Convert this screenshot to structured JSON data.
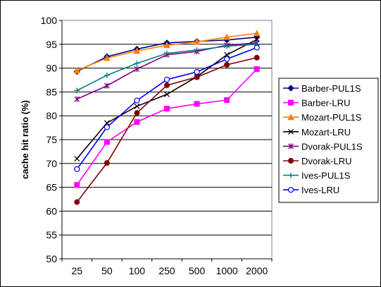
{
  "chart_data": {
    "type": "line",
    "title": "",
    "xlabel": "",
    "ylabel": "cache hit ratio (%)",
    "categories": [
      "25",
      "50",
      "100",
      "250",
      "500",
      "1000",
      "2000"
    ],
    "ylim": [
      50,
      100
    ],
    "yticks": [
      50,
      55,
      60,
      65,
      70,
      75,
      80,
      85,
      90,
      95,
      100
    ],
    "grid": "horizontal",
    "legend_position": "right",
    "series": [
      {
        "name": "Barber-PUL1S",
        "color": "#000080",
        "marker": "diamond",
        "values": [
          89.3,
          92.4,
          94.0,
          95.3,
          95.6,
          95.9,
          96.5
        ]
      },
      {
        "name": "Barber-LRU",
        "color": "#ff00ff",
        "marker": "square",
        "values": [
          65.5,
          74.5,
          78.7,
          81.5,
          82.5,
          83.3,
          89.8
        ]
      },
      {
        "name": "Mozart-PUL1S",
        "color": "#ff8000",
        "marker": "triangle",
        "values": [
          89.5,
          92.1,
          93.6,
          94.8,
          95.5,
          96.5,
          97.3
        ]
      },
      {
        "name": "Mozart-LRU",
        "color": "#000000",
        "marker": "x",
        "values": [
          71.0,
          78.5,
          82.0,
          84.5,
          88.2,
          92.8,
          96.0
        ]
      },
      {
        "name": "Dvorak-PUL1S",
        "color": "#800080",
        "marker": "star",
        "values": [
          83.5,
          86.3,
          89.8,
          92.8,
          93.5,
          94.8,
          95.3
        ]
      },
      {
        "name": "Dvorak-LRU",
        "color": "#800000",
        "marker": "circle-filled",
        "values": [
          61.9,
          70.1,
          80.6,
          86.4,
          88.1,
          90.7,
          92.2
        ]
      },
      {
        "name": "Ives-PUL1S",
        "color": "#008080",
        "marker": "plus",
        "values": [
          85.3,
          88.5,
          91.0,
          93.1,
          93.8,
          94.6,
          95.0
        ]
      },
      {
        "name": "Ives-LRU",
        "color": "#0000ff",
        "marker": "circle-open",
        "values": [
          68.8,
          77.6,
          83.2,
          87.6,
          89.2,
          91.9,
          94.3
        ]
      }
    ]
  }
}
